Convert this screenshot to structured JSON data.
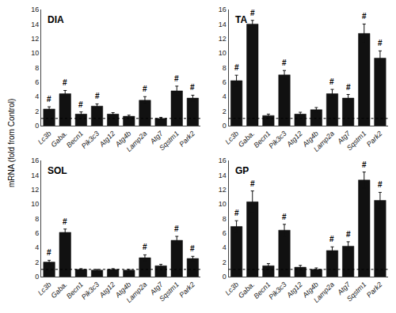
{
  "chart_data": [
    {
      "type": "bar",
      "title": "DIA",
      "ylabel": "mRNA (fold from Control)",
      "categories": [
        "Lc3b",
        "Gaba.",
        "Becn1",
        "Pik3c3",
        "Atg12",
        "Atg4b",
        "Lamp2a",
        "Atg7",
        "Sqstm1",
        "Park2"
      ],
      "values": [
        2.3,
        4.4,
        1.6,
        2.7,
        1.6,
        1.3,
        3.5,
        1.0,
        4.8,
        3.8
      ],
      "errors": [
        0.3,
        0.45,
        0.3,
        0.3,
        0.2,
        0.15,
        0.5,
        0.15,
        0.65,
        0.4
      ],
      "annotations": [
        {
          "category": "Lc3b",
          "text": "#"
        },
        {
          "category": "Gaba.",
          "text": "#"
        },
        {
          "category": "Becn1",
          "text": "#"
        },
        {
          "category": "Pik3c3",
          "text": "#"
        },
        {
          "category": "Lamp2a",
          "text": "#"
        },
        {
          "category": "Sqstm1",
          "text": "#"
        },
        {
          "category": "Park2",
          "text": "#"
        }
      ],
      "reference_y": 1.0,
      "color": "#111111",
      "ylim": [
        0,
        16
      ],
      "yticks": [
        0,
        2,
        4,
        6,
        8,
        10,
        12,
        14,
        16
      ],
      "grid": false
    },
    {
      "type": "bar",
      "title": "TA",
      "categories": [
        "Lc3b",
        "Gaba.",
        "Becn1",
        "Pik3c3",
        "Atg12",
        "Atg4b",
        "Lamp2a",
        "Atg7",
        "Sqstm1",
        "Park2"
      ],
      "values": [
        6.2,
        14.0,
        1.4,
        7.0,
        1.6,
        2.2,
        4.4,
        3.8,
        12.7,
        9.3
      ],
      "errors": [
        0.75,
        0.5,
        0.2,
        0.6,
        0.25,
        0.3,
        0.6,
        0.5,
        1.3,
        1.0
      ],
      "annotations": [
        {
          "category": "Lc3b",
          "text": "#"
        },
        {
          "category": "Gaba.",
          "text": "#"
        },
        {
          "category": "Pik3c3",
          "text": "#"
        },
        {
          "category": "Lamp2a",
          "text": "#"
        },
        {
          "category": "Atg7",
          "text": "#"
        },
        {
          "category": "Sqstm1",
          "text": "#"
        },
        {
          "category": "Park2",
          "text": "#"
        }
      ],
      "reference_y": 1.0,
      "color": "#111111",
      "ylim": [
        0,
        16
      ],
      "yticks": [
        0,
        2,
        4,
        6,
        8,
        10,
        12,
        14,
        16
      ],
      "grid": false
    },
    {
      "type": "bar",
      "title": "SOL",
      "categories": [
        "Lc3b",
        "Gaba.",
        "Becn1",
        "Pik3c3",
        "Atg12",
        "Atg4b",
        "Lamp2a",
        "Atg7",
        "Sqstm1",
        "Park2"
      ],
      "values": [
        2.0,
        6.1,
        1.0,
        0.9,
        1.0,
        0.9,
        2.6,
        1.5,
        5.0,
        2.5
      ],
      "errors": [
        0.25,
        0.45,
        0.1,
        0.1,
        0.1,
        0.1,
        0.4,
        0.2,
        0.55,
        0.3
      ],
      "annotations": [
        {
          "category": "Lc3b",
          "text": "#"
        },
        {
          "category": "Gaba.",
          "text": "#"
        },
        {
          "category": "Lamp2a",
          "text": "#"
        },
        {
          "category": "Sqstm1",
          "text": "#"
        },
        {
          "category": "Park2",
          "text": "#"
        }
      ],
      "reference_y": 1.0,
      "color": "#111111",
      "ylim": [
        0,
        16
      ],
      "yticks": [
        0,
        2,
        4,
        6,
        8,
        10,
        12,
        14,
        16
      ],
      "grid": false
    },
    {
      "type": "bar",
      "title": "GP",
      "categories": [
        "Lc3b",
        "Gaba.",
        "Becn1",
        "Pik3c3",
        "Atg12",
        "Atg4b",
        "Lamp2a",
        "Atg7",
        "Sqstm1",
        "Park2"
      ],
      "values": [
        6.9,
        10.3,
        1.5,
        6.4,
        1.3,
        1.0,
        3.6,
        4.2,
        13.3,
        10.5
      ],
      "errors": [
        0.8,
        1.5,
        0.3,
        0.8,
        0.25,
        0.2,
        0.5,
        0.6,
        1.1,
        1.1
      ],
      "annotations": [
        {
          "category": "Lc3b",
          "text": "#"
        },
        {
          "category": "Gaba.",
          "text": "#"
        },
        {
          "category": "Pik3c3",
          "text": "#"
        },
        {
          "category": "Lamp2a",
          "text": "#"
        },
        {
          "category": "Atg7",
          "text": "#"
        },
        {
          "category": "Sqstm1",
          "text": "#"
        },
        {
          "category": "Park2",
          "text": "#"
        }
      ],
      "reference_y": 1.0,
      "color": "#111111",
      "ylim": [
        0,
        16
      ],
      "yticks": [
        0,
        2,
        4,
        6,
        8,
        10,
        12,
        14,
        16
      ],
      "grid": false
    }
  ]
}
